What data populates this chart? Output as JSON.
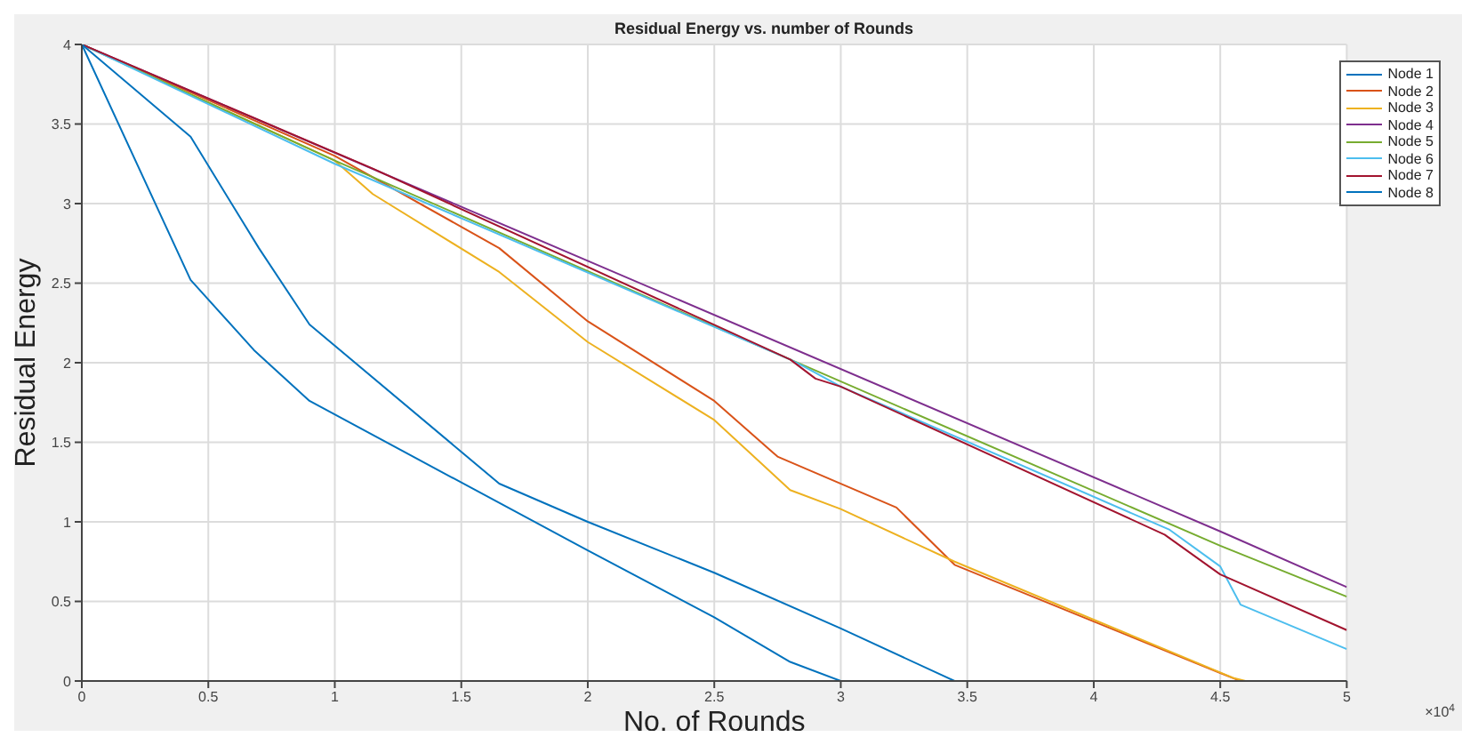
{
  "chart_data": {
    "type": "line",
    "title": "Residual Energy vs. number of Rounds",
    "xlabel": "No. of Rounds",
    "ylabel": "Residual Energy",
    "annotations": [
      "×10$^{4}$"
    ],
    "xlim": [
      0,
      5
    ],
    "xticks": [
      0,
      0.5,
      1,
      1.5,
      2,
      2.5,
      3,
      3.5,
      4,
      4.5,
      5
    ],
    "ylim": [
      0,
      4
    ],
    "yticks": [
      0,
      0.5,
      1,
      1.5,
      2,
      2.5,
      3,
      3.5,
      4
    ],
    "grid": true,
    "legend": "top right",
    "marker": "none",
    "line_style": "solid",
    "series": [
      {
        "name": "Node 1",
        "color": "#0072bd",
        "x": [
          0,
          0.43,
          0.68,
          0.9,
          2,
          2.5,
          2.8,
          3,
          5
        ],
        "values": [
          4,
          2.52,
          2.08,
          1.76,
          0.82,
          0.4,
          0.12,
          0,
          0
        ]
      },
      {
        "name": "Node 2",
        "color": "#d95319",
        "x": [
          0,
          1,
          1.65,
          2,
          2.5,
          2.75,
          3.22,
          3.45,
          4.5,
          4.58
        ],
        "values": [
          4,
          3.3,
          2.72,
          2.26,
          1.76,
          1.41,
          1.09,
          0.73,
          0.05,
          0
        ]
      },
      {
        "name": "Node 3",
        "color": "#edb120",
        "x": [
          0,
          1,
          1.15,
          1.65,
          2,
          2.5,
          2.8,
          3,
          3.45,
          4.55,
          4.6
        ],
        "values": [
          4,
          3.27,
          3.06,
          2.57,
          2.13,
          1.64,
          1.2,
          1.08,
          0.75,
          0.02,
          0
        ]
      },
      {
        "name": "Node 4",
        "color": "#7e2f8e",
        "x": [
          0,
          4.5,
          5
        ],
        "values": [
          4,
          0.94,
          0.59
        ]
      },
      {
        "name": "Node 5",
        "color": "#77ac30",
        "x": [
          0,
          1,
          2.8,
          4.5,
          5
        ],
        "values": [
          4,
          3.27,
          2.02,
          0.85,
          0.53
        ]
      },
      {
        "name": "Node 6",
        "color": "#4dbeee",
        "x": [
          0,
          1,
          2.8,
          2.85,
          3,
          4.3,
          4.5,
          4.58,
          5
        ],
        "values": [
          4,
          3.25,
          2.02,
          1.98,
          1.85,
          0.95,
          0.72,
          0.48,
          0.2
        ]
      },
      {
        "name": "Node 7",
        "color": "#a2142f",
        "x": [
          0,
          1.15,
          2.8,
          2.9,
          3,
          4.28,
          4.5,
          5
        ],
        "values": [
          4,
          3.22,
          2.02,
          1.9,
          1.85,
          0.92,
          0.67,
          0.32
        ]
      },
      {
        "name": "Node 8",
        "color": "#0072bd",
        "x": [
          0,
          0.43,
          0.7,
          0.9,
          1.65,
          2,
          2.5,
          3,
          3.45
        ],
        "values": [
          4,
          3.42,
          2.72,
          2.24,
          1.24,
          1.0,
          0.68,
          0.33,
          0
        ]
      }
    ]
  }
}
